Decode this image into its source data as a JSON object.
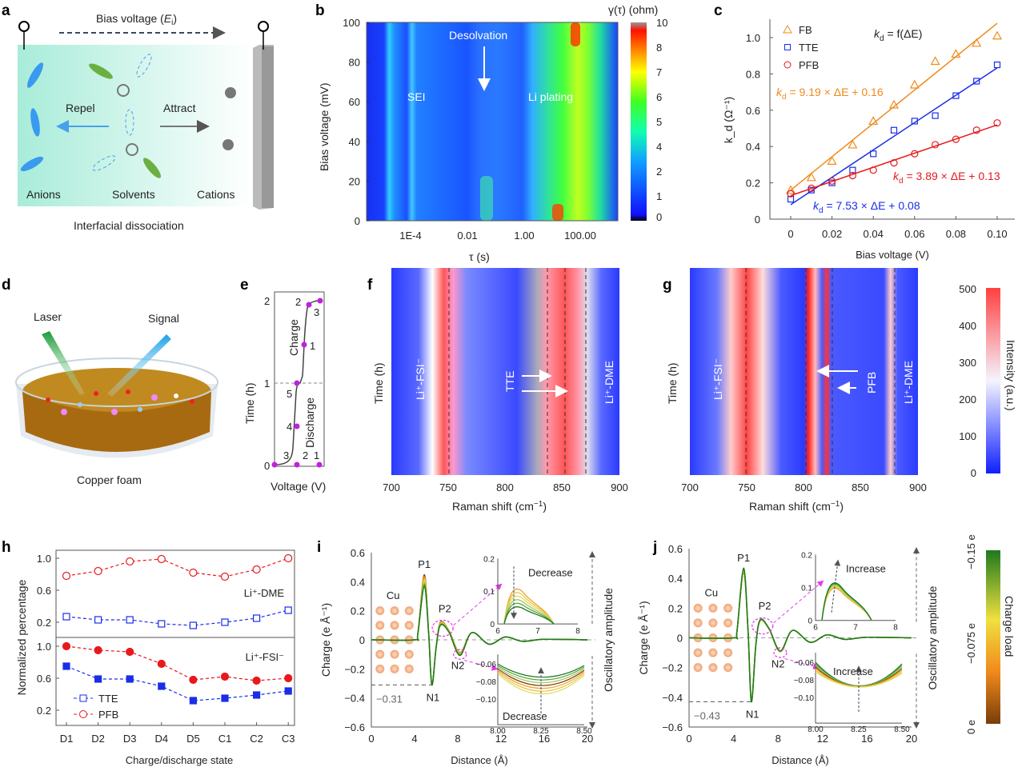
{
  "panels": {
    "a": {
      "label": "a",
      "bias": "Bias voltage (",
      "bias_e": "E",
      "bias_i": "i",
      "bias_close": ")",
      "repel": "Repel",
      "attract": "Attract",
      "anions": "Anions",
      "solvents": "Solvents",
      "cations": "Cations",
      "caption": "Interfacial dissociation"
    },
    "b": {
      "label": "b",
      "ylabel": "Bias voltage (mV)",
      "xlabel": "τ (s)",
      "cbar_title": "γ(τ) (ohm)",
      "yticks": [
        "0",
        "20",
        "40",
        "60",
        "80",
        "100"
      ],
      "xticks": [
        "1E-4",
        "0.01",
        "1.00",
        "100.00"
      ],
      "cbar_ticks": [
        "10",
        "8",
        "7",
        "6",
        "5",
        "4",
        "2",
        "1",
        "0"
      ],
      "sei": "SEI",
      "desolvation": "Desolvation",
      "li_plating": "Li plating"
    },
    "d": {
      "label": "d",
      "laser": "Laser",
      "signal": "Signal",
      "caption": "Copper foam"
    },
    "e": {
      "label": "e",
      "ylabel": "Time (h)",
      "xlabel": "Voltage (V)",
      "yticks": [
        "0",
        "1",
        "2"
      ],
      "charge": "Charge",
      "discharge": "Discharge",
      "points_charge": [
        "1",
        "2",
        "3"
      ],
      "points_discharge": [
        "1",
        "2",
        "3",
        "4",
        "5"
      ]
    },
    "f": {
      "label": "f",
      "ylabel": "Time (h)",
      "xlabel": "Raman shift (cm",
      "xlabel_sup": "−1",
      "xlabel_close": ")",
      "xticks": [
        "700",
        "750",
        "800",
        "850",
        "900"
      ],
      "li_fsi": "Li⁺-FSI⁻",
      "tte": "TTE",
      "li_dme": "Li⁺-DME"
    },
    "g": {
      "label": "g",
      "ylabel": "Time (h)",
      "xlabel": "Raman shift (cm",
      "xlabel_sup": "−1",
      "xlabel_close": ")",
      "xticks": [
        "700",
        "750",
        "800",
        "850",
        "900"
      ],
      "li_fsi": "Li⁺-FSI⁻",
      "pfb": "PFB",
      "li_dme": "Li⁺-DME",
      "cbar_title": "Intensity (a.u.)",
      "cbar_ticks": [
        "500",
        "400",
        "300",
        "200",
        "100",
        "0"
      ]
    },
    "i": {
      "label": "i",
      "ylabel": "Charge (e Å⁻¹)",
      "xlabel": "Distance (Å)",
      "right_label": "Oscillatory amplitude",
      "yticks": [
        "0.6",
        "0.4",
        "0.2",
        "0",
        "−0.2",
        "−0.4",
        "−0.6"
      ],
      "xticks": [
        "0",
        "4",
        "8",
        "12",
        "16",
        "20"
      ],
      "cu": "Cu",
      "p1": "P1",
      "p2": "P2",
      "n1": "N1",
      "n2": "N2",
      "min_value": "−0.31",
      "inset_top_text": "Decrease",
      "inset_bottom_text": "Decrease",
      "inset_top_yticks": [
        "0.2",
        "0.1",
        "0"
      ],
      "inset_top_xticks": [
        "6",
        "7",
        "8"
      ],
      "inset_bottom_yticks": [
        "−0.06",
        "−0.08",
        "−0.10"
      ],
      "inset_bottom_xticks": [
        "8.00",
        "8.25",
        "8.50"
      ]
    },
    "j": {
      "label": "j",
      "ylabel": "Charge (e Å⁻¹)",
      "xlabel": "Distance (Å)",
      "right_label": "Oscillatory amplitude",
      "yticks": [
        "0.6",
        "0.4",
        "0.2",
        "0",
        "−0.2",
        "−0.4",
        "−0.6"
      ],
      "xticks": [
        "0",
        "4",
        "8",
        "12",
        "16",
        "20"
      ],
      "cu": "Cu",
      "p1": "P1",
      "p2": "P2",
      "n1": "N1",
      "n2": "N2",
      "min_value": "−0.43",
      "inset_top_text": "Increase",
      "inset_bottom_text": "Increase",
      "inset_top_yticks": [
        "0.2",
        "0.1",
        "0"
      ],
      "inset_top_xticks": [
        "6",
        "7",
        "8"
      ],
      "inset_bottom_yticks": [
        "−0.06",
        "−0.08",
        "−0.10"
      ],
      "inset_bottom_xticks": [
        "8.00",
        "8.25",
        "8.50"
      ],
      "cbar_title": "Charge load",
      "cbar_ticks": [
        "−0.15 e",
        "−0.075 e",
        "0 e"
      ]
    }
  },
  "colors": {
    "fb": "#f08a1c",
    "tte": "#1a2ee8",
    "pfb": "#e8191c",
    "magenta": "#e83ae8",
    "load_high": "#1e7a1e",
    "load_low": "#7a3d0a"
  },
  "chart_data": [
    {
      "panel": "c",
      "type": "scatter",
      "xlabel": "Bias voltage  (V)",
      "ylabel": "k_d (Ω⁻¹)",
      "x": [
        0,
        0.01,
        0.02,
        0.03,
        0.04,
        0.05,
        0.06,
        0.07,
        0.08,
        0.09,
        0.1
      ],
      "xticks": [
        "0",
        "0.02",
        "0.04",
        "0.06",
        "0.08",
        "0.10"
      ],
      "yticks": [
        "0",
        "0.2",
        "0.4",
        "0.6",
        "0.8",
        "1.0"
      ],
      "xlim": [
        -0.01,
        0.104
      ],
      "ylim": [
        0,
        1.08
      ],
      "title_note": "f(ΔE)",
      "series": [
        {
          "name": "FB",
          "marker": "triangle",
          "values": [
            0.16,
            0.23,
            0.32,
            0.41,
            0.54,
            0.63,
            0.74,
            0.87,
            0.91,
            0.97,
            1.01
          ],
          "fit": {
            "slope": 9.19,
            "intercept": 0.16,
            "label": " = 9.19 × ΔE + 0.16"
          }
        },
        {
          "name": "TTE",
          "marker": "square",
          "values": [
            0.11,
            0.16,
            0.2,
            0.27,
            0.36,
            0.49,
            0.54,
            0.57,
            0.68,
            0.76,
            0.85
          ],
          "fit": {
            "slope": 7.53,
            "intercept": 0.08,
            "label": " = 7.53 × ΔE + 0.08"
          }
        },
        {
          "name": "PFB",
          "marker": "circle",
          "values": [
            0.14,
            0.17,
            0.21,
            0.24,
            0.27,
            0.31,
            0.36,
            0.41,
            0.44,
            0.49,
            0.53
          ],
          "fit": {
            "slope": 3.89,
            "intercept": 0.13,
            "label": " = 3.89 × ΔE + 0.13"
          }
        }
      ]
    },
    {
      "panel": "h",
      "type": "line",
      "xlabel": "Charge/discharge state",
      "ylabel": "Normalized percentage",
      "categories": [
        "D1",
        "D2",
        "D3",
        "D4",
        "D5",
        "C1",
        "C2",
        "C3"
      ],
      "yticks": [
        "0.2",
        "0.6",
        "1.0"
      ],
      "subplots": [
        {
          "label": "Li⁺-DME",
          "ylim": [
            0.1,
            1.1
          ],
          "series": [
            {
              "name": "TTE",
              "filled": false,
              "values": [
                0.27,
                0.23,
                0.23,
                0.18,
                0.16,
                0.2,
                0.25,
                0.35
              ]
            },
            {
              "name": "PFB",
              "filled": false,
              "values": [
                0.78,
                0.84,
                0.96,
                0.99,
                0.82,
                0.77,
                0.86,
                1.0
              ]
            }
          ]
        },
        {
          "label": "Li⁺-FSI⁻",
          "ylim": [
            0.1,
            1.1
          ],
          "series": [
            {
              "name": "TTE",
              "filled": true,
              "values": [
                0.75,
                0.59,
                0.59,
                0.5,
                0.32,
                0.35,
                0.39,
                0.44
              ]
            },
            {
              "name": "PFB",
              "filled": true,
              "values": [
                1.0,
                0.95,
                0.93,
                0.78,
                0.58,
                0.62,
                0.57,
                0.6
              ]
            }
          ]
        }
      ],
      "legend": [
        "TTE",
        "PFB"
      ],
      "legend_position": "bottom-left"
    },
    {
      "panel": "i",
      "type": "line",
      "xlim": [
        0,
        20
      ],
      "ylim": [
        -0.6,
        0.6
      ],
      "peaks": {
        "P1": 0.44,
        "N1": -0.31
      }
    },
    {
      "panel": "j",
      "type": "line",
      "xlim": [
        0,
        20
      ],
      "ylim": [
        -0.6,
        0.6
      ],
      "peaks": {
        "P1": 0.46,
        "N1": -0.43
      }
    }
  ],
  "legend_c": {
    "fb": "FB",
    "tte": "TTE",
    "pfb": "PFB",
    "k": "k",
    "d": "d",
    "label_c": "c",
    "label_h": "h"
  }
}
